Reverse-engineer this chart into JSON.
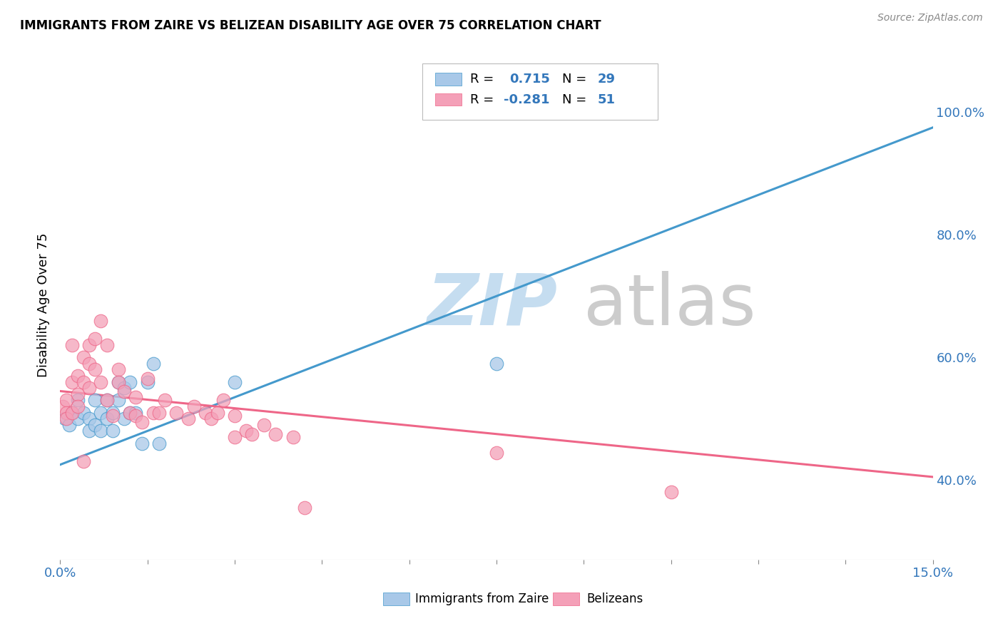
{
  "title": "IMMIGRANTS FROM ZAIRE VS BELIZEAN DISABILITY AGE OVER 75 CORRELATION CHART",
  "source": "Source: ZipAtlas.com",
  "ylabel": "Disability Age Over 75",
  "ylabel_right_ticks": [
    "40.0%",
    "60.0%",
    "80.0%",
    "100.0%"
  ],
  "ylabel_right_vals": [
    0.4,
    0.6,
    0.8,
    1.0
  ],
  "color_blue": "#a8c8e8",
  "color_pink": "#f4a0b8",
  "color_blue_line": "#4499cc",
  "color_pink_line": "#ee6688",
  "color_blue_dark": "#3377bb",
  "xmin": 0.0,
  "xmax": 0.15,
  "ymin": 0.27,
  "ymax": 1.1,
  "xticks": [
    0.0,
    0.015,
    0.03,
    0.045,
    0.06,
    0.075,
    0.09,
    0.105,
    0.12,
    0.135,
    0.15
  ],
  "blue_scatter_x": [
    0.0008,
    0.0015,
    0.002,
    0.003,
    0.003,
    0.004,
    0.005,
    0.005,
    0.006,
    0.006,
    0.007,
    0.007,
    0.008,
    0.008,
    0.009,
    0.009,
    0.01,
    0.01,
    0.011,
    0.011,
    0.012,
    0.012,
    0.013,
    0.014,
    0.015,
    0.016,
    0.017,
    0.03,
    0.075
  ],
  "blue_scatter_y": [
    0.5,
    0.49,
    0.51,
    0.53,
    0.5,
    0.51,
    0.5,
    0.48,
    0.53,
    0.49,
    0.51,
    0.48,
    0.53,
    0.5,
    0.51,
    0.48,
    0.56,
    0.53,
    0.55,
    0.5,
    0.51,
    0.56,
    0.51,
    0.46,
    0.56,
    0.59,
    0.46,
    0.56,
    0.59
  ],
  "pink_scatter_x": [
    0.0005,
    0.001,
    0.001,
    0.001,
    0.002,
    0.002,
    0.002,
    0.003,
    0.003,
    0.003,
    0.004,
    0.004,
    0.004,
    0.005,
    0.005,
    0.005,
    0.006,
    0.006,
    0.007,
    0.007,
    0.008,
    0.008,
    0.009,
    0.01,
    0.01,
    0.011,
    0.012,
    0.013,
    0.013,
    0.014,
    0.015,
    0.016,
    0.017,
    0.018,
    0.02,
    0.022,
    0.023,
    0.025,
    0.026,
    0.027,
    0.028,
    0.03,
    0.03,
    0.032,
    0.033,
    0.035,
    0.037,
    0.04,
    0.042,
    0.075,
    0.105
  ],
  "pink_scatter_y": [
    0.52,
    0.53,
    0.51,
    0.5,
    0.56,
    0.62,
    0.51,
    0.57,
    0.54,
    0.52,
    0.6,
    0.56,
    0.43,
    0.62,
    0.59,
    0.55,
    0.63,
    0.58,
    0.66,
    0.56,
    0.53,
    0.62,
    0.505,
    0.58,
    0.56,
    0.545,
    0.51,
    0.535,
    0.505,
    0.495,
    0.565,
    0.51,
    0.51,
    0.53,
    0.51,
    0.5,
    0.52,
    0.51,
    0.5,
    0.51,
    0.53,
    0.47,
    0.505,
    0.48,
    0.475,
    0.49,
    0.475,
    0.47,
    0.355,
    0.445,
    0.38
  ],
  "blue_line_x": [
    0.0,
    0.15
  ],
  "blue_line_y": [
    0.425,
    0.975
  ],
  "pink_line_x": [
    0.0,
    0.15
  ],
  "pink_line_y": [
    0.545,
    0.405
  ]
}
